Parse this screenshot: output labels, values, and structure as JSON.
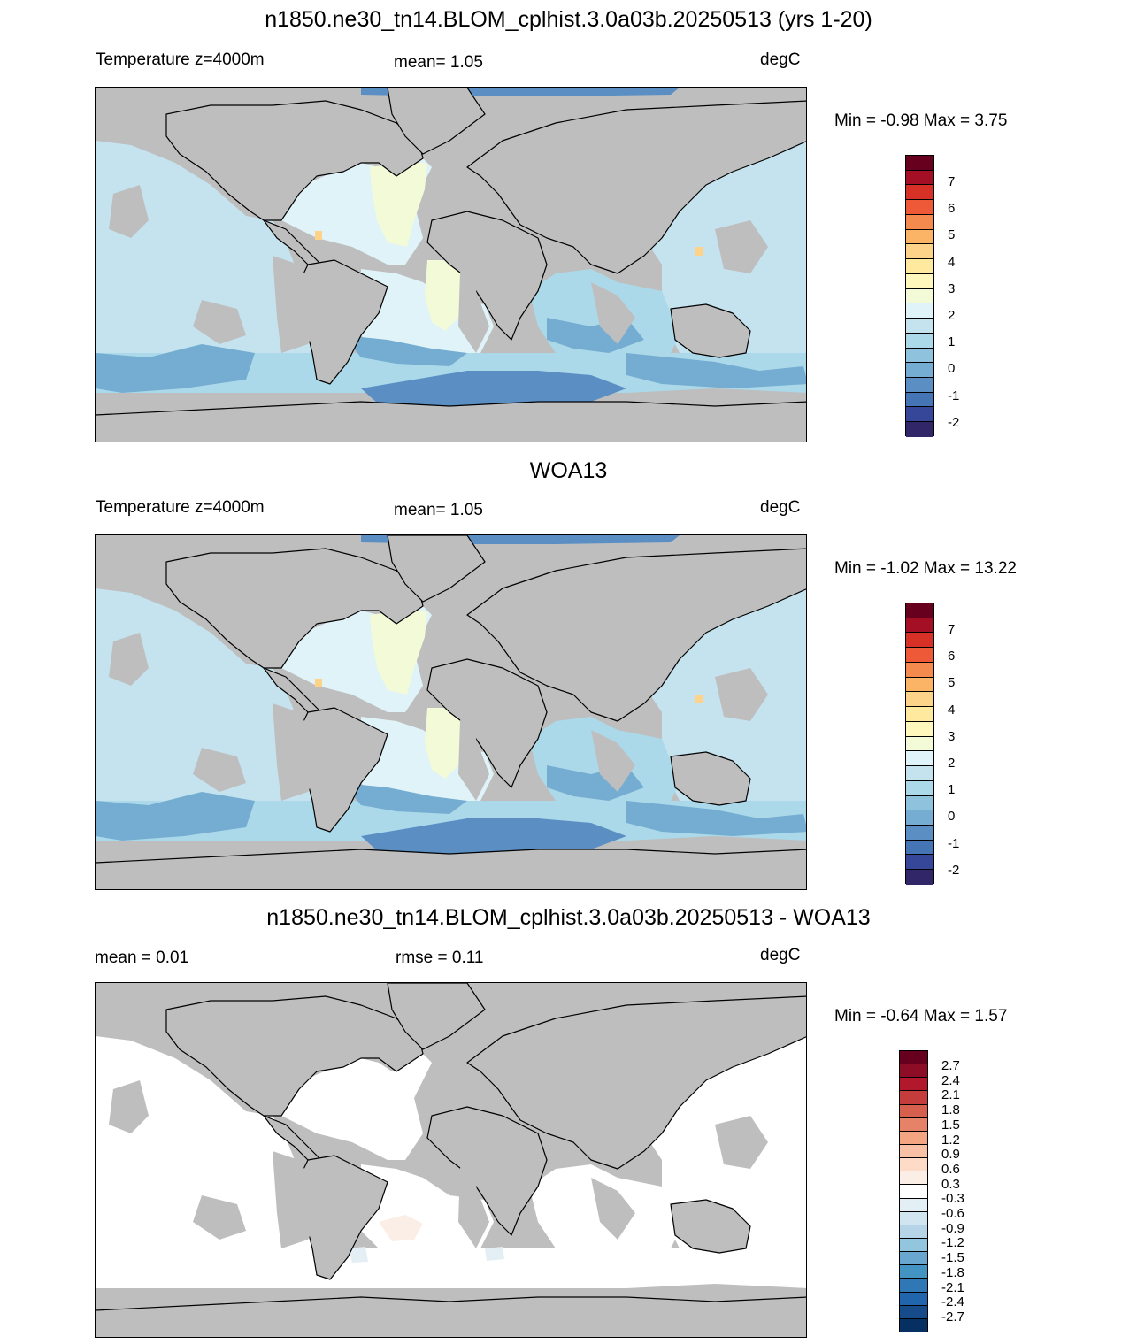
{
  "panels": [
    {
      "title": "n1850.ne30_tn14.BLOM_cplhist.3.0a03b.20250513 (yrs 1-20)",
      "left_label": "Temperature z=4000m",
      "center_label": "mean=   1.05",
      "right_label": "degC",
      "minmax": "Min =  -0.98 Max =   3.75"
    },
    {
      "title": "WOA13",
      "left_label": "Temperature z=4000m",
      "center_label": "mean=   1.05",
      "right_label": "degC",
      "minmax": "Min =  -1.02 Max =  13.22"
    },
    {
      "title": "n1850.ne30_tn14.BLOM_cplhist.3.0a03b.20250513 - WOA13",
      "left_label": "mean =   0.01",
      "center_label": "rmse =   0.11",
      "right_label": "degC",
      "minmax": "Min =  -0.64 Max =   1.57"
    }
  ],
  "colorbar_abs": {
    "ticks": [
      "7",
      "6",
      "5",
      "4",
      "3",
      "2",
      "1",
      "0",
      "-1",
      "-2"
    ],
    "colors": [
      "#67001f",
      "#a50f26",
      "#d73027",
      "#ee5a37",
      "#f48a4d",
      "#fbb365",
      "#fdd38a",
      "#fee99f",
      "#fff7bc",
      "#f2fad8",
      "#e0f3f8",
      "#c4e3ef",
      "#abd9e9",
      "#8fc2dd",
      "#74add1",
      "#5b8fc4",
      "#4575b4",
      "#36479a",
      "#312768"
    ]
  },
  "colorbar_diff": {
    "ticks": [
      "2.7",
      "2.4",
      "2.1",
      "1.8",
      "1.5",
      "1.2",
      "0.9",
      "0.6",
      "0.3",
      "-0.3",
      "-0.6",
      "-0.9",
      "-1.2",
      "-1.5",
      "-1.8",
      "-2.1",
      "-2.4",
      "-2.7"
    ],
    "colors": [
      "#67001f",
      "#8e0d26",
      "#b2182b",
      "#c43c3c",
      "#d6604d",
      "#e58267",
      "#f4a582",
      "#f8c1a6",
      "#fddbc7",
      "#fbeee6",
      "#ffffff",
      "#e3eef5",
      "#d1e5f0",
      "#b5d4e8",
      "#92c5de",
      "#6aa7d0",
      "#4393c3",
      "#2f78b5",
      "#2166ac",
      "#174c8a",
      "#053061"
    ]
  },
  "map_colors": {
    "land": "#bebebe",
    "ocean_main": "#c4e3ef",
    "ocean_light": "#e0f3f8",
    "ocean_mid": "#abd9e9",
    "ocean_deep": "#74add1",
    "ocean_deeper": "#5b8fc4",
    "ocean_pale_yellow": "#f2fad8",
    "warm_spot": "#fdd38a",
    "diff_ocean": "#ffffff",
    "diff_pos": "#fbeee6",
    "diff_neg": "#e3eef5"
  }
}
